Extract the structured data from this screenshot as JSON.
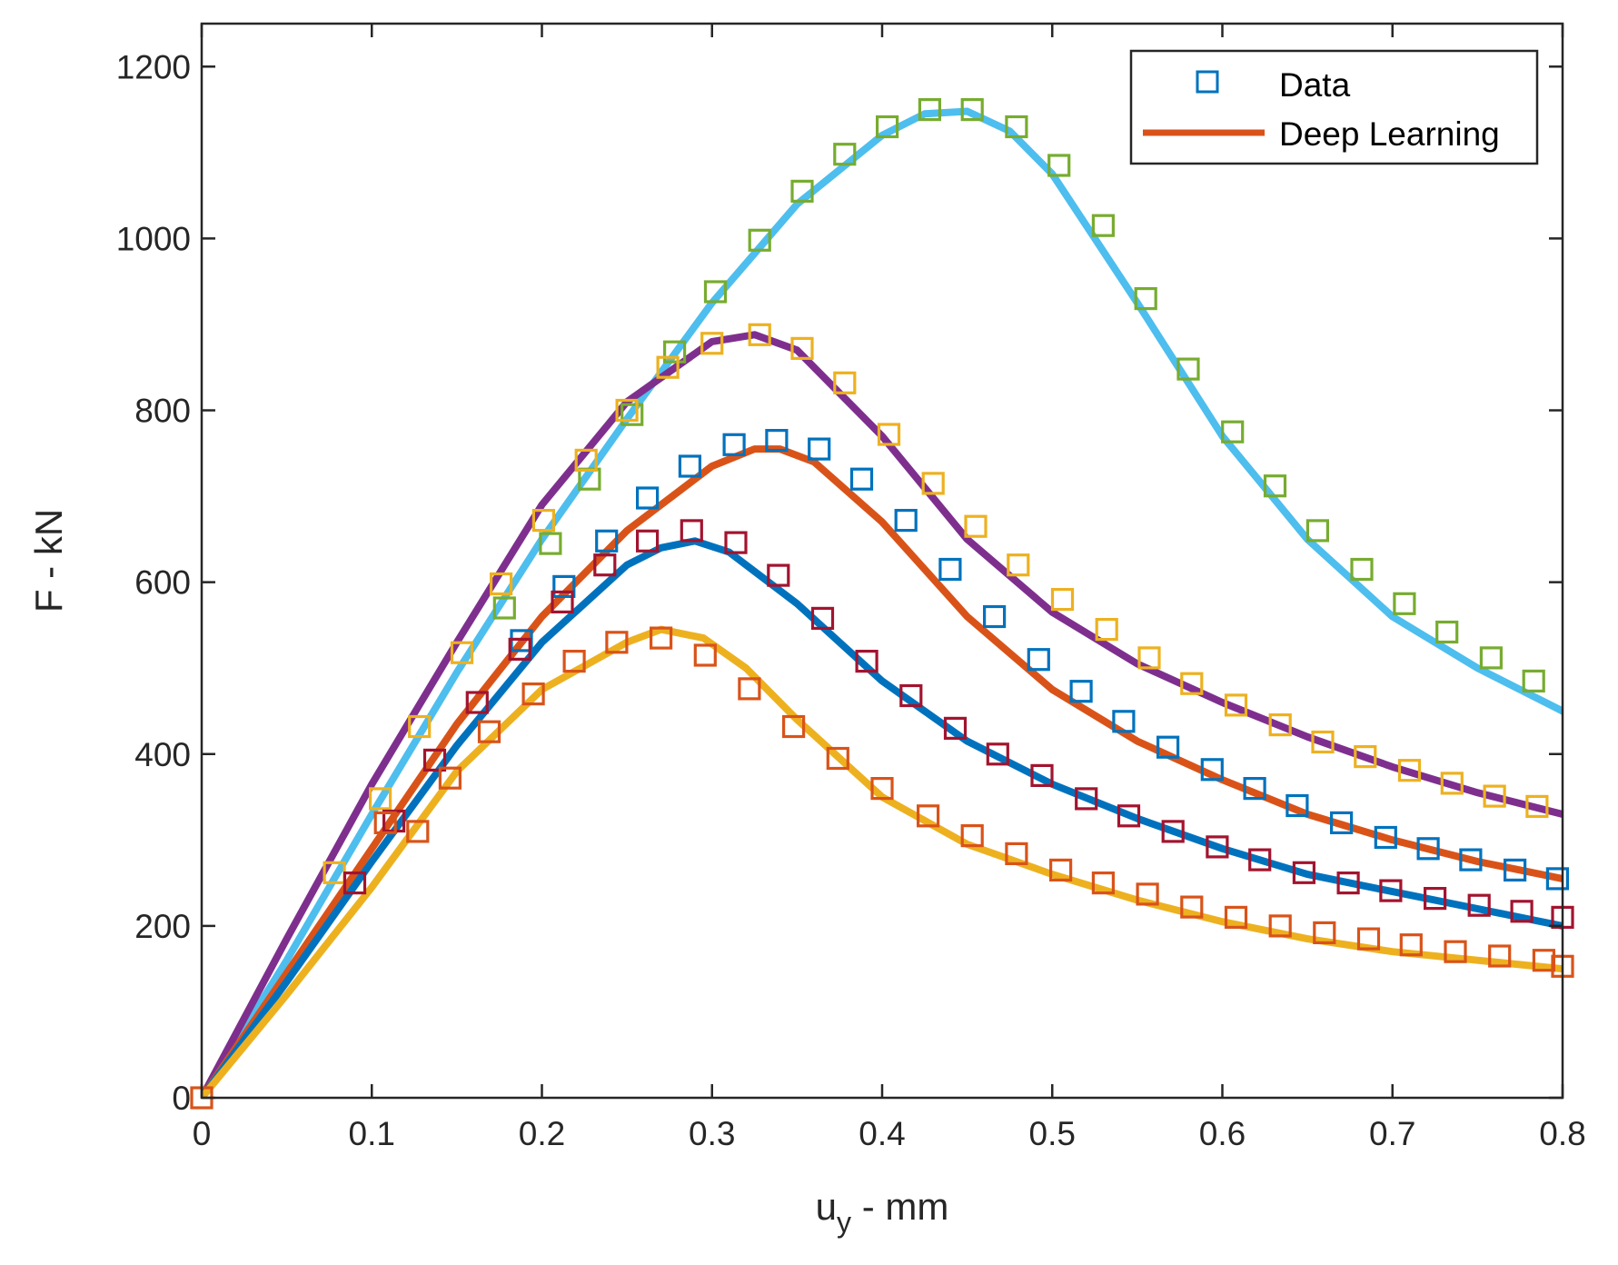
{
  "chart_data": {
    "type": "line",
    "title": "",
    "xlabel_main": "u",
    "xlabel_sub": "y",
    "xlabel_rest": " - mm",
    "ylabel": "F - kN",
    "xlim": [
      0,
      0.8
    ],
    "ylim": [
      0,
      1250
    ],
    "x_ticks": [
      0,
      0.1,
      0.2,
      0.3,
      0.4,
      0.5,
      0.6,
      0.7,
      0.8
    ],
    "x_tick_labels": [
      "0",
      "0.1",
      "0.2",
      "0.3",
      "0.4",
      "0.5",
      "0.6",
      "0.7",
      "0.8"
    ],
    "y_ticks": [
      0,
      200,
      400,
      600,
      800,
      1000,
      1200
    ],
    "y_tick_labels": [
      "0",
      "200",
      "400",
      "600",
      "800",
      "1000",
      "1200"
    ],
    "grid": false,
    "legend": {
      "position": "top-right",
      "entries": [
        {
          "label": "Data",
          "marker": "square",
          "color": "#0072BD"
        },
        {
          "label": "Deep Learning",
          "marker": "line",
          "color": "#D95319"
        }
      ]
    },
    "fits": [
      {
        "name": "fit-1",
        "color": "#4DBEEE",
        "x": [
          0,
          0.05,
          0.1,
          0.15,
          0.2,
          0.25,
          0.3,
          0.35,
          0.4,
          0.425,
          0.45,
          0.475,
          0.5,
          0.55,
          0.6,
          0.65,
          0.7,
          0.75,
          0.8
        ],
        "y": [
          0,
          160,
          330,
          495,
          650,
          790,
          925,
          1040,
          1120,
          1145,
          1148,
          1125,
          1075,
          925,
          770,
          650,
          560,
          500,
          450
        ]
      },
      {
        "name": "fit-2",
        "color": "#7E2F8E",
        "x": [
          0,
          0.05,
          0.1,
          0.15,
          0.2,
          0.25,
          0.3,
          0.325,
          0.35,
          0.4,
          0.45,
          0.5,
          0.55,
          0.6,
          0.65,
          0.7,
          0.75,
          0.8
        ],
        "y": [
          0,
          185,
          365,
          530,
          690,
          810,
          880,
          888,
          870,
          770,
          650,
          565,
          505,
          460,
          420,
          385,
          355,
          330
        ]
      },
      {
        "name": "fit-3",
        "color": "#D95319",
        "x": [
          0,
          0.05,
          0.1,
          0.15,
          0.2,
          0.25,
          0.3,
          0.325,
          0.34,
          0.36,
          0.4,
          0.45,
          0.5,
          0.55,
          0.6,
          0.65,
          0.7,
          0.75,
          0.8
        ],
        "y": [
          0,
          145,
          290,
          435,
          560,
          660,
          735,
          755,
          755,
          740,
          670,
          560,
          475,
          415,
          370,
          330,
          300,
          275,
          255
        ]
      },
      {
        "name": "fit-4",
        "color": "#0072BD",
        "x": [
          0,
          0.05,
          0.1,
          0.15,
          0.2,
          0.25,
          0.27,
          0.29,
          0.31,
          0.35,
          0.4,
          0.45,
          0.5,
          0.55,
          0.6,
          0.65,
          0.7,
          0.75,
          0.8
        ],
        "y": [
          0,
          135,
          275,
          410,
          530,
          620,
          640,
          648,
          635,
          575,
          485,
          415,
          365,
          325,
          290,
          260,
          240,
          220,
          200
        ]
      },
      {
        "name": "fit-5",
        "color": "#EDB120",
        "x": [
          0,
          0.05,
          0.1,
          0.15,
          0.2,
          0.25,
          0.27,
          0.295,
          0.32,
          0.35,
          0.4,
          0.45,
          0.5,
          0.55,
          0.6,
          0.65,
          0.7,
          0.75,
          0.8
        ],
        "y": [
          0,
          120,
          245,
          380,
          475,
          530,
          545,
          535,
          500,
          440,
          350,
          295,
          260,
          230,
          205,
          185,
          170,
          160,
          150
        ]
      }
    ],
    "data_series": [
      {
        "name": "data-1",
        "color": "#77AC30",
        "x": [
          0.178,
          0.205,
          0.228,
          0.253,
          0.278,
          0.302,
          0.328,
          0.353,
          0.378,
          0.403,
          0.428,
          0.453,
          0.479,
          0.504,
          0.53,
          0.555,
          0.58,
          0.606,
          0.631,
          0.656,
          0.682,
          0.707,
          0.732,
          0.758,
          0.783
        ],
        "y": [
          570,
          645,
          720,
          795,
          868,
          938,
          998,
          1055,
          1098,
          1130,
          1150,
          1150,
          1130,
          1085,
          1015,
          930,
          848,
          775,
          712,
          660,
          615,
          575,
          542,
          512,
          485
        ]
      },
      {
        "name": "data-2",
        "color": "#EDB120",
        "x": [
          0.078,
          0.105,
          0.128,
          0.153,
          0.176,
          0.201,
          0.226,
          0.25,
          0.274,
          0.3,
          0.328,
          0.353,
          0.378,
          0.404,
          0.43,
          0.455,
          0.48,
          0.506,
          0.532,
          0.557,
          0.582,
          0.608,
          0.634,
          0.659,
          0.684,
          0.71,
          0.735,
          0.76,
          0.785
        ],
        "y": [
          262,
          348,
          432,
          518,
          598,
          672,
          742,
          800,
          850,
          878,
          888,
          872,
          832,
          772,
          715,
          665,
          620,
          580,
          545,
          512,
          482,
          457,
          434,
          414,
          397,
          381,
          366,
          351,
          339
        ]
      },
      {
        "name": "data-3",
        "color": "#0072BD",
        "x": [
          0.188,
          0.213,
          0.238,
          0.262,
          0.287,
          0.313,
          0.338,
          0.363,
          0.388,
          0.414,
          0.44,
          0.466,
          0.492,
          0.517,
          0.542,
          0.568,
          0.594,
          0.619,
          0.644,
          0.67,
          0.696,
          0.721,
          0.746,
          0.772,
          0.797
        ],
        "y": [
          532,
          595,
          648,
          698,
          735,
          760,
          765,
          755,
          720,
          672,
          615,
          560,
          510,
          473,
          438,
          408,
          382,
          360,
          340,
          320,
          303,
          290,
          277,
          265,
          255
        ]
      },
      {
        "name": "data-4",
        "color": "#A2142F",
        "x": [
          0.09,
          0.113,
          0.137,
          0.162,
          0.187,
          0.212,
          0.237,
          0.262,
          0.288,
          0.314,
          0.339,
          0.365,
          0.391,
          0.417,
          0.443,
          0.468,
          0.494,
          0.52,
          0.545,
          0.571,
          0.597,
          0.622,
          0.648,
          0.674,
          0.699,
          0.725,
          0.751,
          0.776,
          0.8
        ],
        "y": [
          250,
          322,
          393,
          460,
          522,
          577,
          620,
          648,
          660,
          646,
          608,
          558,
          508,
          468,
          430,
          400,
          375,
          348,
          328,
          310,
          292,
          277,
          262,
          250,
          241,
          232,
          224,
          217,
          210
        ]
      },
      {
        "name": "data-5",
        "color": "#D95319",
        "x": [
          0,
          0.108,
          0.127,
          0.146,
          0.169,
          0.195,
          0.219,
          0.244,
          0.27,
          0.296,
          0.322,
          0.348,
          0.374,
          0.4,
          0.427,
          0.453,
          0.479,
          0.505,
          0.53,
          0.556,
          0.582,
          0.608,
          0.634,
          0.66,
          0.686,
          0.711,
          0.737,
          0.763,
          0.789,
          0.8
        ],
        "y": [
          0,
          320,
          310,
          372,
          426,
          470,
          508,
          530,
          535,
          515,
          476,
          432,
          395,
          360,
          328,
          305,
          284,
          265,
          250,
          237,
          222,
          210,
          200,
          192,
          185,
          178,
          170,
          165,
          160,
          153
        ]
      }
    ]
  }
}
